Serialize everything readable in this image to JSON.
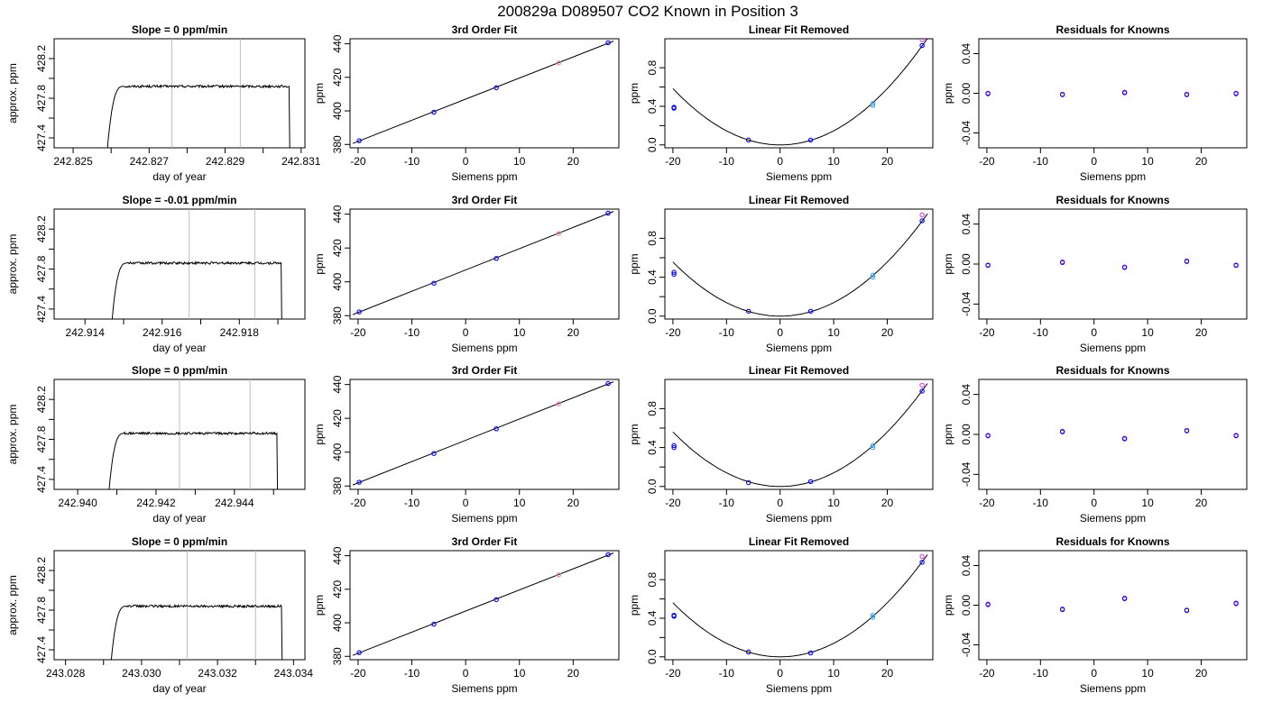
{
  "title": "200829a     D089507   CO2 Known in Position  3",
  "colors": {
    "axis": "#000000",
    "line": "#000000",
    "window": "#bdbdbd",
    "point_blue": "#0000ff",
    "point_purple": "#7a00d6",
    "point_magenta": "#e040e0",
    "point_cyan": "#36a4ff",
    "point_pink": "#ff80c0"
  },
  "chart_data": [
    {
      "type": "line",
      "row": 0,
      "col": 0,
      "title": "Slope =  0  ppm/min",
      "xlabel": "day of year",
      "ylabel": "approx. ppm",
      "xlim": [
        242.8245,
        242.8311
      ],
      "ylim": [
        427.3,
        428.4
      ],
      "xticks": [
        242.825,
        242.826,
        242.827,
        242.828,
        242.829,
        242.83,
        242.831
      ],
      "xtick_labels": [
        "242.825",
        "",
        "242.827",
        "",
        "242.829",
        "",
        "242.831"
      ],
      "yticks": [
        427.4,
        427.6,
        427.8,
        428.0,
        428.2
      ],
      "ytick_labels": [
        "427.4",
        "",
        "427.8",
        "",
        "428.2"
      ],
      "trace": {
        "start": 242.8259,
        "end": 242.8307,
        "plateau": 427.92,
        "noise": 0.012,
        "drop": 427.28
      },
      "window": [
        242.8276,
        242.8294
      ]
    },
    {
      "type": "scatter",
      "row": 0,
      "col": 1,
      "title": "3rd Order Fit",
      "xlabel": "Siemens ppm",
      "ylabel": "ppm",
      "xlim": [
        -21.5,
        28.5
      ],
      "ylim": [
        378,
        443
      ],
      "xticks": [
        -20,
        -10,
        0,
        10,
        20
      ],
      "xtick_labels": [
        "-20",
        "-10",
        "0",
        "10",
        "20"
      ],
      "yticks": [
        380,
        400,
        420,
        440
      ],
      "ytick_labels": [
        "380",
        "400",
        "420",
        "440"
      ],
      "fit_line": [
        [
          -21,
          380.6
        ],
        [
          27.5,
          441.6
        ]
      ],
      "points": [
        [
          -19.8,
          382.2
        ],
        [
          -5.9,
          399.2
        ],
        [
          5.7,
          413.8
        ],
        [
          17.3,
          428.6
        ],
        [
          26.5,
          440.6
        ]
      ]
    },
    {
      "type": "scatter",
      "row": 0,
      "col": 2,
      "title": "Linear Fit Removed",
      "xlabel": "Siemens ppm",
      "ylabel": "ppm",
      "xlim": [
        -21.5,
        28.5
      ],
      "ylim": [
        -0.03,
        1.1
      ],
      "xticks": [
        -20,
        -10,
        0,
        10,
        20
      ],
      "xtick_labels": [
        "-20",
        "-10",
        "0",
        "10",
        "20"
      ],
      "yticks": [
        0.0,
        0.2,
        0.4,
        0.6,
        0.8
      ],
      "ytick_labels": [
        "0.0",
        "",
        "0.4",
        "",
        "0.8"
      ],
      "curve_a": 0.00146,
      "points": [
        [
          -19.8,
          0.39
        ],
        [
          -19.8,
          0.38
        ],
        [
          -5.9,
          0.05
        ],
        [
          5.7,
          0.05
        ],
        [
          17.3,
          0.43
        ],
        [
          17.3,
          0.41
        ],
        [
          26.5,
          1.03
        ],
        [
          26.5,
          1.09
        ]
      ]
    },
    {
      "type": "scatter",
      "row": 0,
      "col": 3,
      "title": "Residuals for Knowns",
      "xlabel": "Siemens ppm",
      "ylabel": "ppm",
      "xlim": [
        -21.5,
        28.5
      ],
      "ylim": [
        -0.055,
        0.055
      ],
      "xticks": [
        -20,
        -10,
        0,
        10,
        20
      ],
      "xtick_labels": [
        "-20",
        "-10",
        "0",
        "10",
        "20"
      ],
      "yticks": [
        -0.04,
        0.0,
        0.04
      ],
      "ytick_labels": [
        "-0.04",
        "0.00",
        "0.04"
      ],
      "points": [
        [
          -19.8,
          0.0
        ],
        [
          -5.9,
          -0.001
        ],
        [
          5.7,
          0.001
        ],
        [
          17.3,
          -0.001
        ],
        [
          26.5,
          0.0
        ]
      ]
    },
    {
      "type": "line",
      "row": 1,
      "col": 0,
      "title": "Slope =  -0.01  ppm/min",
      "xlabel": "day of year",
      "ylabel": "approx. ppm",
      "xlim": [
        242.9132,
        242.9197
      ],
      "ylim": [
        427.3,
        428.4
      ],
      "xticks": [
        242.914,
        242.915,
        242.916,
        242.917,
        242.918,
        242.919
      ],
      "xtick_labels": [
        "242.914",
        "",
        "242.916",
        "",
        "242.918",
        ""
      ],
      "yticks": [
        427.4,
        427.6,
        427.8,
        428.0,
        428.2
      ],
      "ytick_labels": [
        "427.4",
        "",
        "427.8",
        "",
        "428.2"
      ],
      "trace": {
        "start": 242.9147,
        "end": 242.9191,
        "plateau": 427.86,
        "noise": 0.012,
        "drop": 427.28
      },
      "window": [
        242.9167,
        242.9184
      ]
    },
    {
      "type": "scatter",
      "row": 1,
      "col": 1,
      "title": "3rd Order Fit",
      "xlabel": "Siemens ppm",
      "ylabel": "ppm",
      "xlim": [
        -21.5,
        28.5
      ],
      "ylim": [
        378,
        443
      ],
      "xticks": [
        -20,
        -10,
        0,
        10,
        20
      ],
      "xtick_labels": [
        "-20",
        "-10",
        "0",
        "10",
        "20"
      ],
      "yticks": [
        380,
        400,
        420,
        440
      ],
      "ytick_labels": [
        "380",
        "400",
        "420",
        "440"
      ],
      "fit_line": [
        [
          -21,
          380.6
        ],
        [
          27.5,
          441.6
        ]
      ],
      "points": [
        [
          -19.8,
          382.2
        ],
        [
          -5.9,
          399.2
        ],
        [
          5.7,
          413.8
        ],
        [
          17.3,
          428.6
        ],
        [
          26.5,
          440.6
        ]
      ]
    },
    {
      "type": "scatter",
      "row": 1,
      "col": 2,
      "title": "Linear Fit Removed",
      "xlabel": "Siemens ppm",
      "ylabel": "ppm",
      "xlim": [
        -21.5,
        28.5
      ],
      "ylim": [
        -0.03,
        1.1
      ],
      "xticks": [
        -20,
        -10,
        0,
        10,
        20
      ],
      "xtick_labels": [
        "-20",
        "-10",
        "0",
        "10",
        "20"
      ],
      "yticks": [
        0.0,
        0.2,
        0.4,
        0.6,
        0.8
      ],
      "ytick_labels": [
        "0.0",
        "",
        "0.4",
        "",
        "0.8"
      ],
      "curve_a": 0.00139,
      "points": [
        [
          -19.8,
          0.45
        ],
        [
          -19.8,
          0.43
        ],
        [
          -5.9,
          0.05
        ],
        [
          5.7,
          0.05
        ],
        [
          17.3,
          0.42
        ],
        [
          17.3,
          0.4
        ],
        [
          26.5,
          0.98
        ],
        [
          26.5,
          1.04
        ]
      ]
    },
    {
      "type": "scatter",
      "row": 1,
      "col": 3,
      "title": "Residuals for Knowns",
      "xlabel": "Siemens ppm",
      "ylabel": "ppm",
      "xlim": [
        -21.5,
        28.5
      ],
      "ylim": [
        -0.055,
        0.055
      ],
      "xticks": [
        -20,
        -10,
        0,
        10,
        20
      ],
      "xtick_labels": [
        "-20",
        "-10",
        "0",
        "10",
        "20"
      ],
      "yticks": [
        -0.04,
        0.0,
        0.04
      ],
      "ytick_labels": [
        "-0.04",
        "0.00",
        "0.04"
      ],
      "points": [
        [
          -19.8,
          -0.001
        ],
        [
          -5.9,
          0.002
        ],
        [
          5.7,
          -0.003
        ],
        [
          17.3,
          0.003
        ],
        [
          26.5,
          -0.001
        ]
      ]
    },
    {
      "type": "line",
      "row": 2,
      "col": 0,
      "title": "Slope =  0  ppm/min",
      "xlabel": "day of year",
      "ylabel": "approx. ppm",
      "xlim": [
        242.9394,
        242.9458
      ],
      "ylim": [
        427.3,
        428.4
      ],
      "xticks": [
        242.94,
        242.941,
        242.942,
        242.943,
        242.944,
        242.945
      ],
      "xtick_labels": [
        "242.940",
        "",
        "242.942",
        "",
        "242.944",
        ""
      ],
      "yticks": [
        427.4,
        427.6,
        427.8,
        428.0,
        428.2
      ],
      "ytick_labels": [
        "427.4",
        "",
        "427.8",
        "",
        "428.2"
      ],
      "trace": {
        "start": 242.9408,
        "end": 242.9451,
        "plateau": 427.86,
        "noise": 0.012,
        "drop": 427.28
      },
      "window": [
        242.9426,
        242.9444
      ]
    },
    {
      "type": "scatter",
      "row": 2,
      "col": 1,
      "title": "3rd Order Fit",
      "xlabel": "Siemens ppm",
      "ylabel": "ppm",
      "xlim": [
        -21.5,
        28.5
      ],
      "ylim": [
        378,
        443
      ],
      "xticks": [
        -20,
        -10,
        0,
        10,
        20
      ],
      "xtick_labels": [
        "-20",
        "-10",
        "0",
        "10",
        "20"
      ],
      "yticks": [
        380,
        400,
        420,
        440
      ],
      "ytick_labels": [
        "380",
        "400",
        "420",
        "440"
      ],
      "fit_line": [
        [
          -21,
          380.6
        ],
        [
          27.5,
          441.6
        ]
      ],
      "points": [
        [
          -19.8,
          382.2
        ],
        [
          -5.9,
          399.2
        ],
        [
          5.7,
          413.8
        ],
        [
          17.3,
          428.6
        ],
        [
          26.5,
          440.6
        ]
      ]
    },
    {
      "type": "scatter",
      "row": 2,
      "col": 2,
      "title": "Linear Fit Removed",
      "xlabel": "Siemens ppm",
      "ylabel": "ppm",
      "xlim": [
        -21.5,
        28.5
      ],
      "ylim": [
        -0.03,
        1.1
      ],
      "xticks": [
        -20,
        -10,
        0,
        10,
        20
      ],
      "xtick_labels": [
        "-20",
        "-10",
        "0",
        "10",
        "20"
      ],
      "yticks": [
        0.0,
        0.2,
        0.4,
        0.6,
        0.8
      ],
      "ytick_labels": [
        "0.0",
        "",
        "0.4",
        "",
        "0.8"
      ],
      "curve_a": 0.0014,
      "points": [
        [
          -19.8,
          0.42
        ],
        [
          -19.8,
          0.4
        ],
        [
          -5.9,
          0.04
        ],
        [
          5.7,
          0.05
        ],
        [
          17.3,
          0.42
        ],
        [
          17.3,
          0.4
        ],
        [
          26.5,
          0.98
        ],
        [
          26.5,
          1.04
        ]
      ]
    },
    {
      "type": "scatter",
      "row": 2,
      "col": 3,
      "title": "Residuals for Knowns",
      "xlabel": "Siemens ppm",
      "ylabel": "ppm",
      "xlim": [
        -21.5,
        28.5
      ],
      "ylim": [
        -0.055,
        0.055
      ],
      "xticks": [
        -20,
        -10,
        0,
        10,
        20
      ],
      "xtick_labels": [
        "-20",
        "-10",
        "0",
        "10",
        "20"
      ],
      "yticks": [
        -0.04,
        0.0,
        0.04
      ],
      "ytick_labels": [
        "-0.04",
        "0.00",
        "0.04"
      ],
      "points": [
        [
          -19.8,
          -0.001
        ],
        [
          -5.9,
          0.003
        ],
        [
          5.7,
          -0.004
        ],
        [
          17.3,
          0.004
        ],
        [
          26.5,
          -0.001
        ]
      ]
    },
    {
      "type": "line",
      "row": 3,
      "col": 0,
      "title": "Slope =  0  ppm/min",
      "xlabel": "day of year",
      "ylabel": "approx. ppm",
      "xlim": [
        243.0277,
        243.0343
      ],
      "ylim": [
        427.3,
        428.4
      ],
      "xticks": [
        243.028,
        243.029,
        243.03,
        243.031,
        243.032,
        243.033,
        243.034
      ],
      "xtick_labels": [
        "243.028",
        "",
        "243.030",
        "",
        "243.032",
        "",
        "243.034"
      ],
      "yticks": [
        427.4,
        427.6,
        427.8,
        428.0,
        428.2
      ],
      "ytick_labels": [
        "427.4",
        "",
        "427.8",
        "",
        "428.2"
      ],
      "trace": {
        "start": 243.0292,
        "end": 243.0337,
        "plateau": 427.84,
        "noise": 0.012,
        "drop": 427.28
      },
      "window": [
        243.0312,
        243.033
      ]
    },
    {
      "type": "scatter",
      "row": 3,
      "col": 1,
      "title": "3rd Order Fit",
      "xlabel": "Siemens ppm",
      "ylabel": "ppm",
      "xlim": [
        -21.5,
        28.5
      ],
      "ylim": [
        378,
        443
      ],
      "xticks": [
        -20,
        -10,
        0,
        10,
        20
      ],
      "xtick_labels": [
        "-20",
        "-10",
        "0",
        "10",
        "20"
      ],
      "yticks": [
        380,
        400,
        420,
        440
      ],
      "ytick_labels": [
        "380",
        "400",
        "420",
        "440"
      ],
      "fit_line": [
        [
          -21,
          380.6
        ],
        [
          27.5,
          441.6
        ]
      ],
      "points": [
        [
          -19.8,
          382.2
        ],
        [
          -5.9,
          399.2
        ],
        [
          5.7,
          413.8
        ],
        [
          17.3,
          428.6
        ],
        [
          26.5,
          440.6
        ]
      ]
    },
    {
      "type": "scatter",
      "row": 3,
      "col": 2,
      "title": "Linear Fit Removed",
      "xlabel": "Siemens ppm",
      "ylabel": "ppm",
      "xlim": [
        -21.5,
        28.5
      ],
      "ylim": [
        -0.03,
        1.1
      ],
      "xticks": [
        -20,
        -10,
        0,
        10,
        20
      ],
      "xtick_labels": [
        "-20",
        "-10",
        "0",
        "10",
        "20"
      ],
      "yticks": [
        0.0,
        0.2,
        0.4,
        0.6,
        0.8
      ],
      "ytick_labels": [
        "0.0",
        "",
        "0.4",
        "",
        "0.8"
      ],
      "curve_a": 0.0014,
      "points": [
        [
          -19.8,
          0.43
        ],
        [
          -19.8,
          0.42
        ],
        [
          -5.9,
          0.05
        ],
        [
          5.7,
          0.04
        ],
        [
          17.3,
          0.43
        ],
        [
          17.3,
          0.41
        ],
        [
          26.5,
          0.98
        ],
        [
          26.5,
          1.04
        ]
      ]
    },
    {
      "type": "scatter",
      "row": 3,
      "col": 3,
      "title": "Residuals for Knowns",
      "xlabel": "Siemens ppm",
      "ylabel": "ppm",
      "xlim": [
        -21.5,
        28.5
      ],
      "ylim": [
        -0.055,
        0.055
      ],
      "xticks": [
        -20,
        -10,
        0,
        10,
        20
      ],
      "xtick_labels": [
        "-20",
        "-10",
        "0",
        "10",
        "20"
      ],
      "yticks": [
        -0.04,
        0.0,
        0.04
      ],
      "ytick_labels": [
        "-0.04",
        "0.00",
        "0.04"
      ],
      "points": [
        [
          -19.8,
          0.001
        ],
        [
          -5.9,
          -0.004
        ],
        [
          5.7,
          0.007
        ],
        [
          17.3,
          -0.005
        ],
        [
          26.5,
          0.002
        ]
      ]
    }
  ]
}
